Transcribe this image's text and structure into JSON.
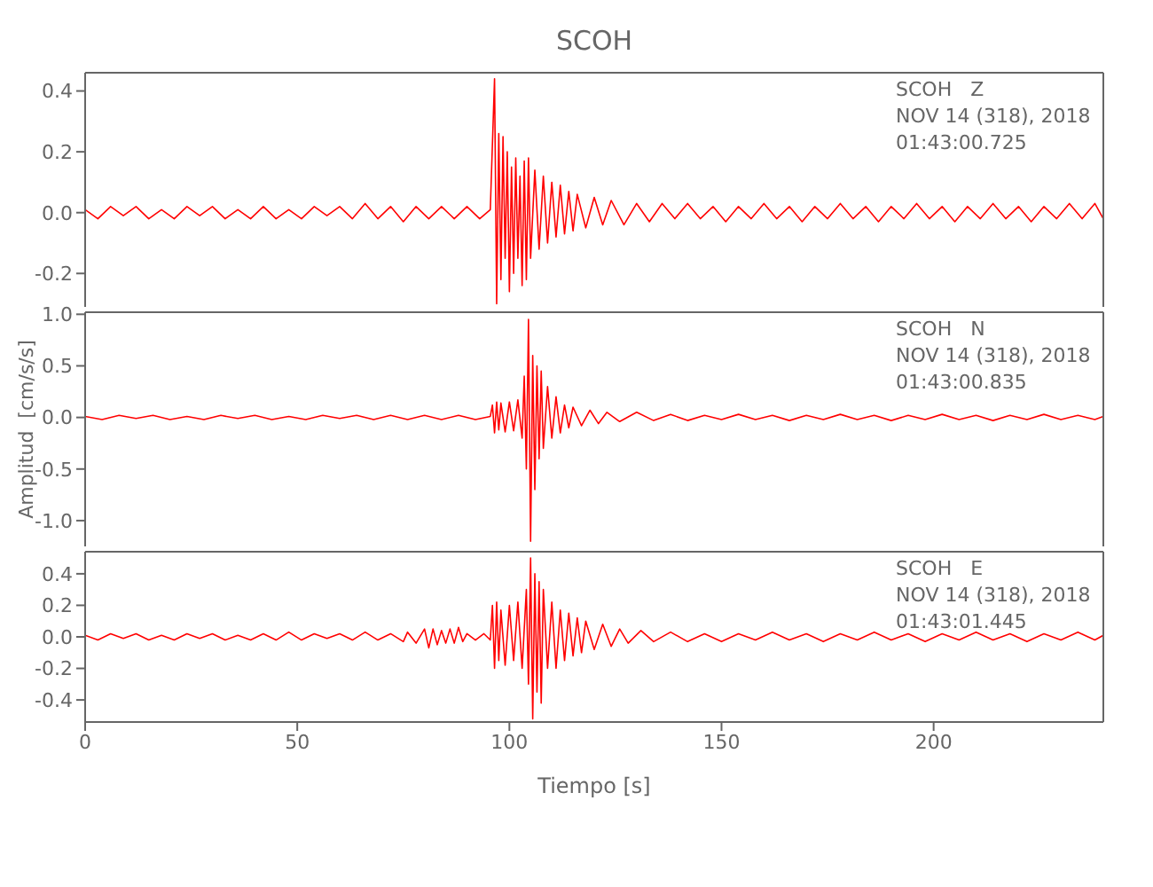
{
  "chart_data": [
    {
      "type": "line",
      "title": "SCOH",
      "annotations": [
        "SCOH   Z",
        "NOV 14 (318), 2018",
        "01:43:00.725"
      ],
      "xlim": [
        0,
        240
      ],
      "xticks": [
        0,
        50,
        100,
        150,
        200
      ],
      "ylim": [
        -0.31,
        0.46
      ],
      "yticks": [
        -0.2,
        {
          "value": 0,
          "label": "0.0"
        },
        0.2,
        0.4
      ],
      "tick_labels": "y",
      "grid": false,
      "legend": false,
      "marker": "none",
      "line_style": "solid",
      "x": [
        0,
        3,
        6,
        9,
        12,
        15,
        18,
        21,
        24,
        27,
        30,
        33,
        36,
        39,
        42,
        45,
        48,
        51,
        54,
        57,
        60,
        63,
        66,
        69,
        72,
        75,
        78,
        81,
        84,
        87,
        90,
        93,
        95.5,
        96.5,
        97,
        97.5,
        98,
        98.5,
        99,
        99.5,
        100,
        100.5,
        101,
        101.5,
        102,
        102.5,
        103,
        103.5,
        104,
        104.5,
        105,
        106,
        107,
        108,
        109,
        110,
        111,
        112,
        113,
        114,
        115,
        116,
        118,
        120,
        122,
        124,
        127,
        130,
        133,
        136,
        139,
        142,
        145,
        148,
        151,
        154,
        157,
        160,
        163,
        166,
        169,
        172,
        175,
        178,
        181,
        184,
        187,
        190,
        193,
        196,
        199,
        202,
        205,
        208,
        211,
        214,
        217,
        220,
        223,
        226,
        229,
        232,
        235,
        238,
        240
      ],
      "series": [
        {
          "color": "#ff0000",
          "values": [
            0.01,
            -0.02,
            0.02,
            -0.01,
            0.02,
            -0.02,
            0.01,
            -0.02,
            0.02,
            -0.01,
            0.02,
            -0.02,
            0.01,
            -0.02,
            0.02,
            -0.02,
            0.01,
            -0.02,
            0.02,
            -0.01,
            0.02,
            -0.02,
            0.03,
            -0.02,
            0.02,
            -0.03,
            0.02,
            -0.02,
            0.02,
            -0.02,
            0.02,
            -0.02,
            0.01,
            0.44,
            -0.3,
            0.26,
            -0.22,
            0.25,
            -0.15,
            0.2,
            -0.26,
            0.15,
            -0.2,
            0.18,
            -0.15,
            0.12,
            -0.24,
            0.17,
            -0.22,
            0.18,
            -0.15,
            0.14,
            -0.12,
            0.12,
            -0.1,
            0.1,
            -0.08,
            0.09,
            -0.07,
            0.07,
            -0.06,
            0.06,
            -0.05,
            0.05,
            -0.04,
            0.04,
            -0.04,
            0.03,
            -0.03,
            0.03,
            -0.02,
            0.03,
            -0.02,
            0.02,
            -0.03,
            0.02,
            -0.02,
            0.03,
            -0.02,
            0.02,
            -0.03,
            0.02,
            -0.02,
            0.03,
            -0.02,
            0.02,
            -0.03,
            0.02,
            -0.02,
            0.03,
            -0.02,
            0.02,
            -0.03,
            0.02,
            -0.02,
            0.03,
            -0.02,
            0.02,
            -0.03,
            0.02,
            -0.02,
            0.03,
            -0.02,
            0.03,
            -0.02
          ]
        }
      ]
    },
    {
      "type": "line",
      "ylabel": "Amplitud  [cm/s/s]",
      "annotations": [
        "SCOH   N",
        "NOV 14 (318), 2018",
        "01:43:00.835"
      ],
      "xlim": [
        0,
        240
      ],
      "xticks": [
        0,
        50,
        100,
        150,
        200
      ],
      "ylim": [
        -1.25,
        1.02
      ],
      "yticks": [
        {
          "value": -1,
          "label": "-1.0"
        },
        -0.5,
        {
          "value": 0,
          "label": "0.0"
        },
        0.5,
        {
          "value": 1,
          "label": "1.0"
        }
      ],
      "tick_labels": "y",
      "grid": false,
      "legend": false,
      "marker": "none",
      "line_style": "solid",
      "x": [
        0,
        4,
        8,
        12,
        16,
        20,
        24,
        28,
        32,
        36,
        40,
        44,
        48,
        52,
        56,
        60,
        64,
        68,
        72,
        76,
        80,
        84,
        88,
        92,
        95.5,
        96,
        96.5,
        97,
        97.5,
        98,
        99,
        100,
        101,
        102,
        103,
        103.5,
        104,
        104.5,
        105,
        105.5,
        106,
        106.5,
        107,
        107.5,
        108,
        109,
        110,
        111,
        112,
        113,
        114,
        115,
        117,
        119,
        121,
        123,
        126,
        130,
        134,
        138,
        142,
        146,
        150,
        154,
        158,
        162,
        166,
        170,
        174,
        178,
        182,
        186,
        190,
        194,
        198,
        202,
        206,
        210,
        214,
        218,
        222,
        226,
        230,
        234,
        238,
        240
      ],
      "series": [
        {
          "color": "#ff0000",
          "values": [
            0.01,
            -0.02,
            0.02,
            -0.01,
            0.02,
            -0.02,
            0.01,
            -0.02,
            0.02,
            -0.01,
            0.02,
            -0.02,
            0.01,
            -0.02,
            0.02,
            -0.01,
            0.02,
            -0.02,
            0.02,
            -0.02,
            0.02,
            -0.02,
            0.02,
            -0.02,
            0.01,
            0.12,
            -0.15,
            0.15,
            -0.12,
            0.14,
            -0.14,
            0.15,
            -0.13,
            0.17,
            -0.2,
            0.4,
            -0.5,
            0.95,
            -1.2,
            0.6,
            -0.7,
            0.5,
            -0.4,
            0.45,
            -0.3,
            0.3,
            -0.2,
            0.2,
            -0.15,
            0.12,
            -0.1,
            0.1,
            -0.08,
            0.07,
            -0.06,
            0.05,
            -0.04,
            0.05,
            -0.03,
            0.03,
            -0.03,
            0.02,
            -0.02,
            0.03,
            -0.02,
            0.02,
            -0.03,
            0.02,
            -0.02,
            0.03,
            -0.02,
            0.02,
            -0.03,
            0.02,
            -0.02,
            0.03,
            -0.02,
            0.02,
            -0.03,
            0.02,
            -0.02,
            0.03,
            -0.02,
            0.02,
            -0.02,
            0.01
          ]
        }
      ]
    },
    {
      "type": "line",
      "xlabel": "Tiempo  [s]",
      "annotations": [
        "SCOH   E",
        "NOV 14 (318), 2018",
        "01:43:01.445"
      ],
      "xlim": [
        0,
        240
      ],
      "xticks": [
        0,
        50,
        100,
        150,
        200
      ],
      "ylim": [
        -0.54,
        0.54
      ],
      "yticks": [
        -0.4,
        -0.2,
        {
          "value": 0,
          "label": "0.0"
        },
        0.2,
        0.4
      ],
      "grid": false,
      "legend": false,
      "marker": "none",
      "line_style": "solid",
      "x": [
        0,
        3,
        6,
        9,
        12,
        15,
        18,
        21,
        24,
        27,
        30,
        33,
        36,
        39,
        42,
        45,
        48,
        51,
        54,
        57,
        60,
        63,
        66,
        69,
        72,
        75,
        76,
        78,
        80,
        81,
        82,
        83,
        84,
        85,
        86,
        87,
        88,
        89,
        90,
        92,
        94,
        95.5,
        96,
        96.5,
        97,
        97.5,
        98,
        99,
        100,
        101,
        102,
        103,
        104,
        104.5,
        105,
        105.5,
        106,
        106.5,
        107,
        107.5,
        108,
        109,
        110,
        111,
        112,
        113,
        114,
        115,
        116,
        117,
        118,
        120,
        122,
        124,
        126,
        128,
        131,
        134,
        138,
        142,
        146,
        150,
        154,
        158,
        162,
        166,
        170,
        174,
        178,
        182,
        186,
        190,
        194,
        198,
        202,
        206,
        210,
        214,
        218,
        222,
        226,
        230,
        234,
        238,
        240
      ],
      "series": [
        {
          "color": "#ff0000",
          "values": [
            0.01,
            -0.02,
            0.02,
            -0.01,
            0.02,
            -0.02,
            0.01,
            -0.02,
            0.02,
            -0.01,
            0.02,
            -0.02,
            0.01,
            -0.02,
            0.02,
            -0.02,
            0.03,
            -0.02,
            0.02,
            -0.01,
            0.02,
            -0.02,
            0.03,
            -0.02,
            0.02,
            -0.03,
            0.03,
            -0.04,
            0.05,
            -0.07,
            0.05,
            -0.05,
            0.04,
            -0.04,
            0.05,
            -0.04,
            0.06,
            -0.03,
            0.02,
            -0.02,
            0.02,
            -0.02,
            0.2,
            -0.2,
            0.22,
            -0.15,
            0.17,
            -0.18,
            0.2,
            -0.15,
            0.22,
            -0.2,
            0.3,
            -0.3,
            0.5,
            -0.52,
            0.4,
            -0.35,
            0.35,
            -0.42,
            0.3,
            -0.2,
            0.22,
            -0.2,
            0.17,
            -0.15,
            0.15,
            -0.12,
            0.12,
            -0.1,
            0.1,
            -0.08,
            0.08,
            -0.06,
            0.05,
            -0.04,
            0.04,
            -0.03,
            0.03,
            -0.03,
            0.02,
            -0.03,
            0.02,
            -0.02,
            0.03,
            -0.02,
            0.02,
            -0.03,
            0.02,
            -0.02,
            0.03,
            -0.02,
            0.02,
            -0.03,
            0.02,
            -0.02,
            0.03,
            -0.02,
            0.02,
            -0.03,
            0.02,
            -0.02,
            0.03,
            -0.02,
            0.01
          ]
        }
      ]
    }
  ]
}
